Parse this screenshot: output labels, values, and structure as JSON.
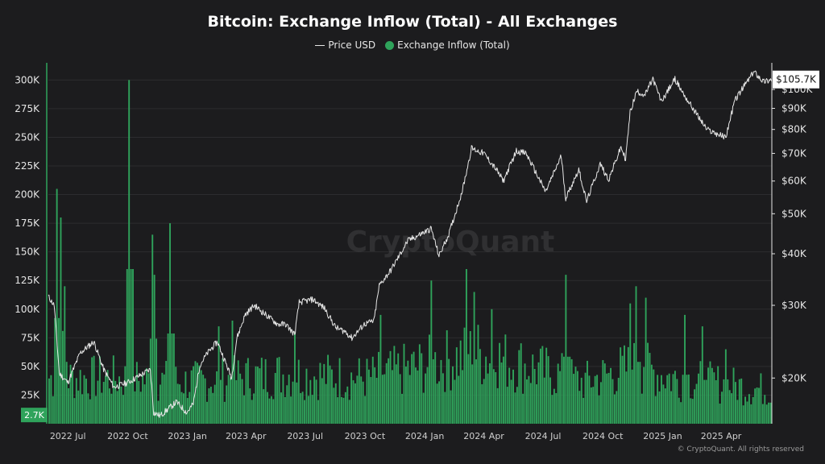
{
  "chart_data": {
    "type": "bar",
    "title": "Bitcoin: Exchange Inflow (Total) - All Exchanges",
    "watermark": "CryptoQuant",
    "copyright": "© CryptoQuant. All rights reserved",
    "legend": {
      "placement": "top-center"
    },
    "grid": true,
    "colors": {
      "background": "#1c1c1e",
      "price": "#e6e6e6",
      "inflow": "#2fa35b",
      "grid": "#2c2c2f"
    },
    "x_ticks": [
      "2022 Jul",
      "2022 Oct",
      "2023 Jan",
      "2023 Apr",
      "2023 Jul",
      "2023 Oct",
      "2024 Jan",
      "2024 Apr",
      "2024 Jul",
      "2024 Oct",
      "2025 Jan",
      "2025 Apr"
    ],
    "x_range": [
      "2022-06-01",
      "2025-06-18"
    ],
    "left_axis": {
      "ylim": [
        0,
        315000
      ],
      "ticks": [
        25000,
        50000,
        75000,
        100000,
        125000,
        150000,
        175000,
        200000,
        225000,
        250000,
        275000,
        300000
      ],
      "tick_labels": [
        "25K",
        "50K",
        "75K",
        "100K",
        "125K",
        "150K",
        "175K",
        "200K",
        "225K",
        "250K",
        "275K",
        "300K"
      ]
    },
    "right_axis": {
      "scale": "log",
      "ylim": [
        15500,
        116000
      ],
      "ticks": [
        20000,
        30000,
        40000,
        50000,
        60000,
        70000,
        80000,
        90000,
        100000
      ],
      "tick_labels": [
        "$20K",
        "$30K",
        "$40K",
        "$50K",
        "$60K",
        "$70K",
        "$80K",
        "$90K",
        "$100K"
      ]
    },
    "series": [
      {
        "name": "Price USD",
        "axis": "right",
        "style": "line",
        "current_label": "$105.7K",
        "dates": [
          "2022-06-01",
          "2022-06-10",
          "2022-06-18",
          "2022-07-01",
          "2022-07-20",
          "2022-08-10",
          "2022-08-25",
          "2022-09-10",
          "2022-10-01",
          "2022-10-25",
          "2022-11-05",
          "2022-11-10",
          "2022-11-20",
          "2022-12-15",
          "2022-12-31",
          "2023-01-10",
          "2023-01-20",
          "2023-02-01",
          "2023-02-16",
          "2023-03-10",
          "2023-03-18",
          "2023-03-31",
          "2023-04-14",
          "2023-05-01",
          "2023-05-20",
          "2023-06-01",
          "2023-06-15",
          "2023-06-22",
          "2023-07-13",
          "2023-07-31",
          "2023-08-17",
          "2023-09-01",
          "2023-09-11",
          "2023-09-30",
          "2023-10-15",
          "2023-10-23",
          "2023-11-10",
          "2023-12-06",
          "2024-01-11",
          "2024-01-23",
          "2024-02-08",
          "2024-02-28",
          "2024-03-13",
          "2024-04-01",
          "2024-04-20",
          "2024-05-01",
          "2024-05-21",
          "2024-06-05",
          "2024-07-05",
          "2024-07-29",
          "2024-08-05",
          "2024-08-25",
          "2024-09-06",
          "2024-09-27",
          "2024-10-10",
          "2024-10-29",
          "2024-11-05",
          "2024-11-12",
          "2024-11-22",
          "2024-12-05",
          "2024-12-17",
          "2024-12-30",
          "2025-01-20",
          "2025-02-03",
          "2025-02-28",
          "2025-03-10",
          "2025-04-08",
          "2025-04-22",
          "2025-05-10",
          "2025-05-22",
          "2025-06-05",
          "2025-06-18"
        ],
        "values": [
          31500,
          30000,
          20500,
          19500,
          23000,
          24500,
          21000,
          19000,
          19500,
          20500,
          21000,
          16500,
          16200,
          17500,
          16500,
          17300,
          21500,
          23000,
          24500,
          20000,
          25000,
          28500,
          30000,
          28500,
          27000,
          27000,
          25500,
          30500,
          31000,
          29500,
          26500,
          25900,
          25000,
          27000,
          27500,
          33500,
          36500,
          43000,
          46000,
          39500,
          45000,
          57000,
          72000,
          70000,
          64000,
          60000,
          71000,
          70000,
          56500,
          69000,
          54500,
          64000,
          53500,
          66000,
          60500,
          72500,
          67800,
          88000,
          99000,
          97000,
          106000,
          93500,
          106000,
          97000,
          84500,
          80000,
          76500,
          94000,
          104000,
          110500,
          104500,
          105700
        ]
      },
      {
        "name": "Exchange Inflow (Total)",
        "axis": "left",
        "style": "bar",
        "current_label": "2.7K",
        "dates": [
          "2022-06-13",
          "2022-06-18",
          "2022-06-25",
          "2022-10-03",
          "2022-11-08",
          "2022-11-10",
          "2022-12-05",
          "2023-02-17",
          "2023-03-10",
          "2023-06-15",
          "2023-10-24",
          "2024-01-11",
          "2024-03-05",
          "2024-03-15",
          "2024-04-13",
          "2024-08-05",
          "2024-11-12",
          "2024-11-21",
          "2024-12-05",
          "2025-02-03",
          "2025-03-03",
          "2025-04-07",
          "2025-06-18"
        ],
        "values": [
          205000,
          180000,
          120000,
          300000,
          165000,
          130000,
          175000,
          85000,
          90000,
          80000,
          95000,
          125000,
          135000,
          115000,
          100000,
          130000,
          105000,
          120000,
          110000,
          95000,
          85000,
          65000,
          2700
        ]
      }
    ]
  }
}
